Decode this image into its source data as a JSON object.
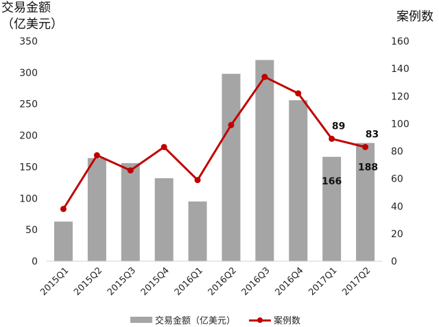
{
  "chart_data": {
    "type": "bar+line",
    "categories": [
      "2015Q1",
      "2015Q2",
      "2015Q3",
      "2015Q4",
      "2016Q1",
      "2016Q2",
      "2016Q3",
      "2016Q4",
      "2017Q1",
      "2017Q2"
    ],
    "series": [
      {
        "name": "交易金额（亿美元）",
        "type": "bar",
        "axis": "left",
        "color": "#a5a5a5",
        "values": [
          63,
          164,
          156,
          132,
          95,
          298,
          320,
          256,
          166,
          188
        ]
      },
      {
        "name": "案例数",
        "type": "line",
        "axis": "right",
        "color": "#c00000",
        "values": [
          38,
          77,
          66,
          83,
          59,
          99,
          134,
          122,
          89,
          83
        ]
      }
    ],
    "left_axis": {
      "label_line1": "交易金额",
      "label_line2": "（亿美元）",
      "ylim": [
        0,
        350
      ],
      "ticks": [
        "0",
        "50",
        "100",
        "150",
        "200",
        "250",
        "300",
        "350"
      ]
    },
    "right_axis": {
      "label": "案例数",
      "ylim": [
        0,
        160
      ],
      "ticks": [
        "0",
        "20",
        "40",
        "60",
        "80",
        "100",
        "120",
        "140",
        "160"
      ]
    },
    "data_labels": [
      {
        "series": "line",
        "index": 8,
        "text": "89"
      },
      {
        "series": "line",
        "index": 9,
        "text": "83"
      },
      {
        "series": "bar",
        "index": 8,
        "text": "166"
      },
      {
        "series": "bar",
        "index": 9,
        "text": "188"
      }
    ],
    "grid": false,
    "legend": "bottom"
  }
}
